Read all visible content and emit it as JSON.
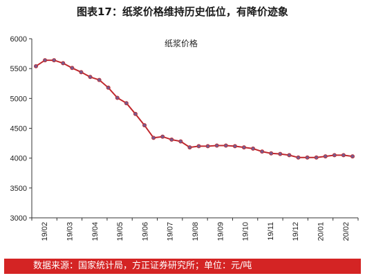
{
  "title": "图表17：纸浆价格维持历史低位，有降价迹象",
  "source": "数据来源：国家统计局，方正证券研究所；单位：元/吨",
  "colors": {
    "line": "#c0282d",
    "marker": "#7a5a8c",
    "footer": "#d42424"
  },
  "chart_data": {
    "type": "line",
    "title": "",
    "xlabel": "",
    "ylabel": "",
    "ylim": [
      3000,
      6000
    ],
    "yticks": [
      3000,
      3500,
      4000,
      4500,
      5000,
      5500,
      6000
    ],
    "xtick_labels": [
      "19/02",
      "19/03",
      "19/04",
      "19/05",
      "19/06",
      "19/07",
      "19/08",
      "19/09",
      "19/10",
      "19/11",
      "19/12",
      "20/01",
      "20/02"
    ],
    "grid": false,
    "legend": "top-center",
    "series": [
      {
        "name": "纸浆价格",
        "values": [
          5540,
          5640,
          5640,
          5590,
          5510,
          5440,
          5360,
          5310,
          5180,
          5010,
          4920,
          4740,
          4550,
          4340,
          4360,
          4310,
          4280,
          4180,
          4200,
          4200,
          4210,
          4210,
          4200,
          4180,
          4160,
          4110,
          4080,
          4070,
          4050,
          4010,
          4010,
          4010,
          4030,
          4050,
          4050,
          4030
        ]
      }
    ]
  }
}
